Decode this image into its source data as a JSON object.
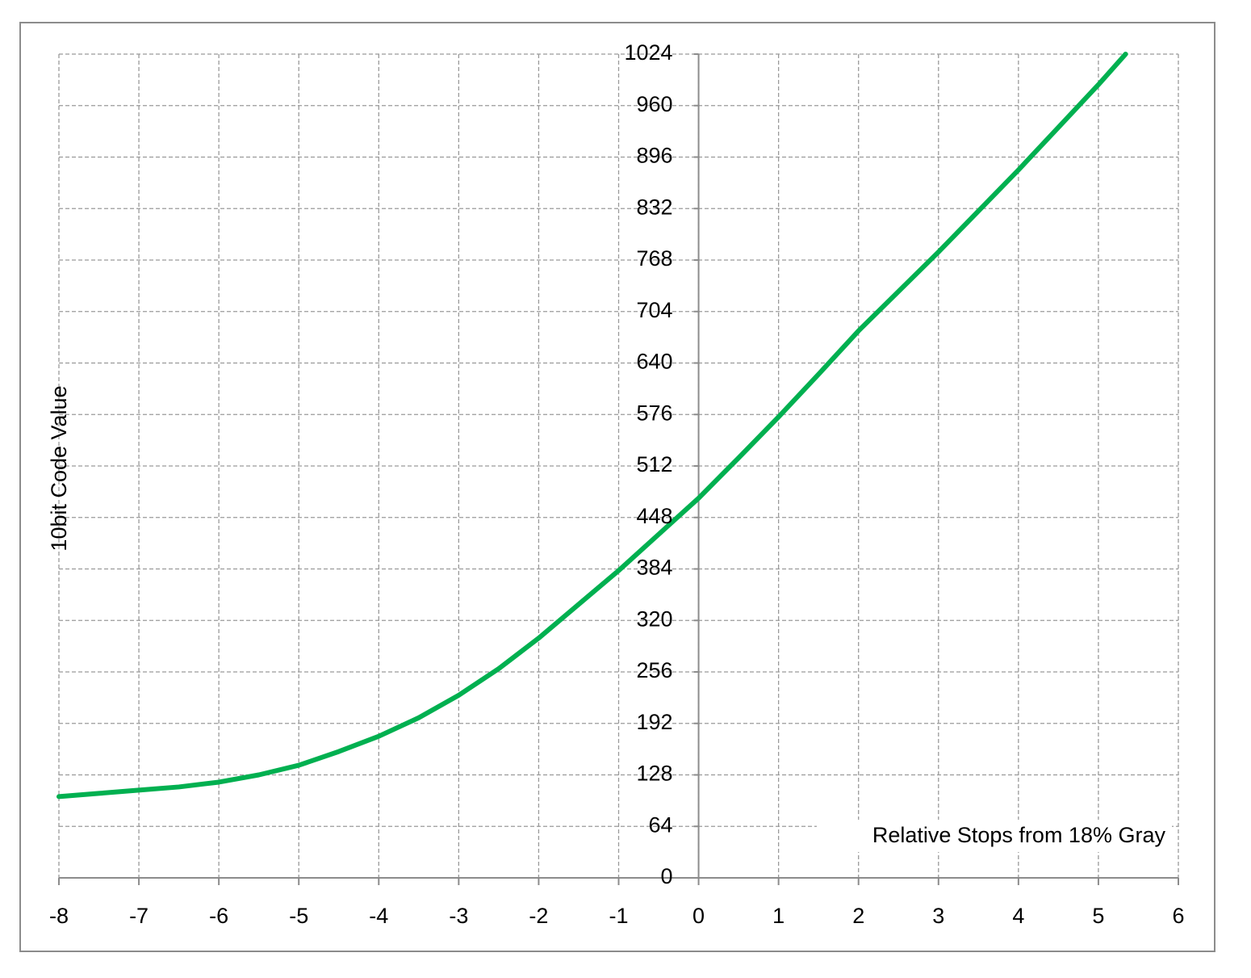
{
  "chart_data": {
    "type": "line",
    "y_label": "10bit Code Value",
    "x_label": "Relative Stops from 18% Gray",
    "x": [
      -8,
      -7.5,
      -7,
      -6.5,
      -6,
      -5.5,
      -5,
      -4.5,
      -4,
      -3.5,
      -3,
      -2.5,
      -2,
      -1.5,
      -1,
      -0.5,
      0,
      0.5,
      1,
      1.5,
      2,
      2.5,
      3,
      3.5,
      4,
      4.5,
      5,
      5.34
    ],
    "series": [
      {
        "color": "#00b050",
        "values": [
          101,
          105,
          109,
          113,
          119,
          128,
          140,
          157,
          176,
          199,
          227,
          260,
          298,
          340,
          382,
          427,
          472,
          522,
          573,
          626,
          680,
          729,
          778,
          829,
          880,
          933,
          986,
          1024
        ]
      }
    ],
    "xlim": [
      -8,
      6
    ],
    "xticks": [
      -8,
      -7,
      -6,
      -5,
      -4,
      -3,
      -2,
      -1,
      0,
      1,
      2,
      3,
      4,
      5,
      6
    ],
    "ylim": [
      0,
      1024
    ],
    "yticks": [
      0,
      64,
      128,
      192,
      256,
      320,
      384,
      448,
      512,
      576,
      640,
      704,
      768,
      832,
      896,
      960,
      1024
    ],
    "grid": true
  }
}
